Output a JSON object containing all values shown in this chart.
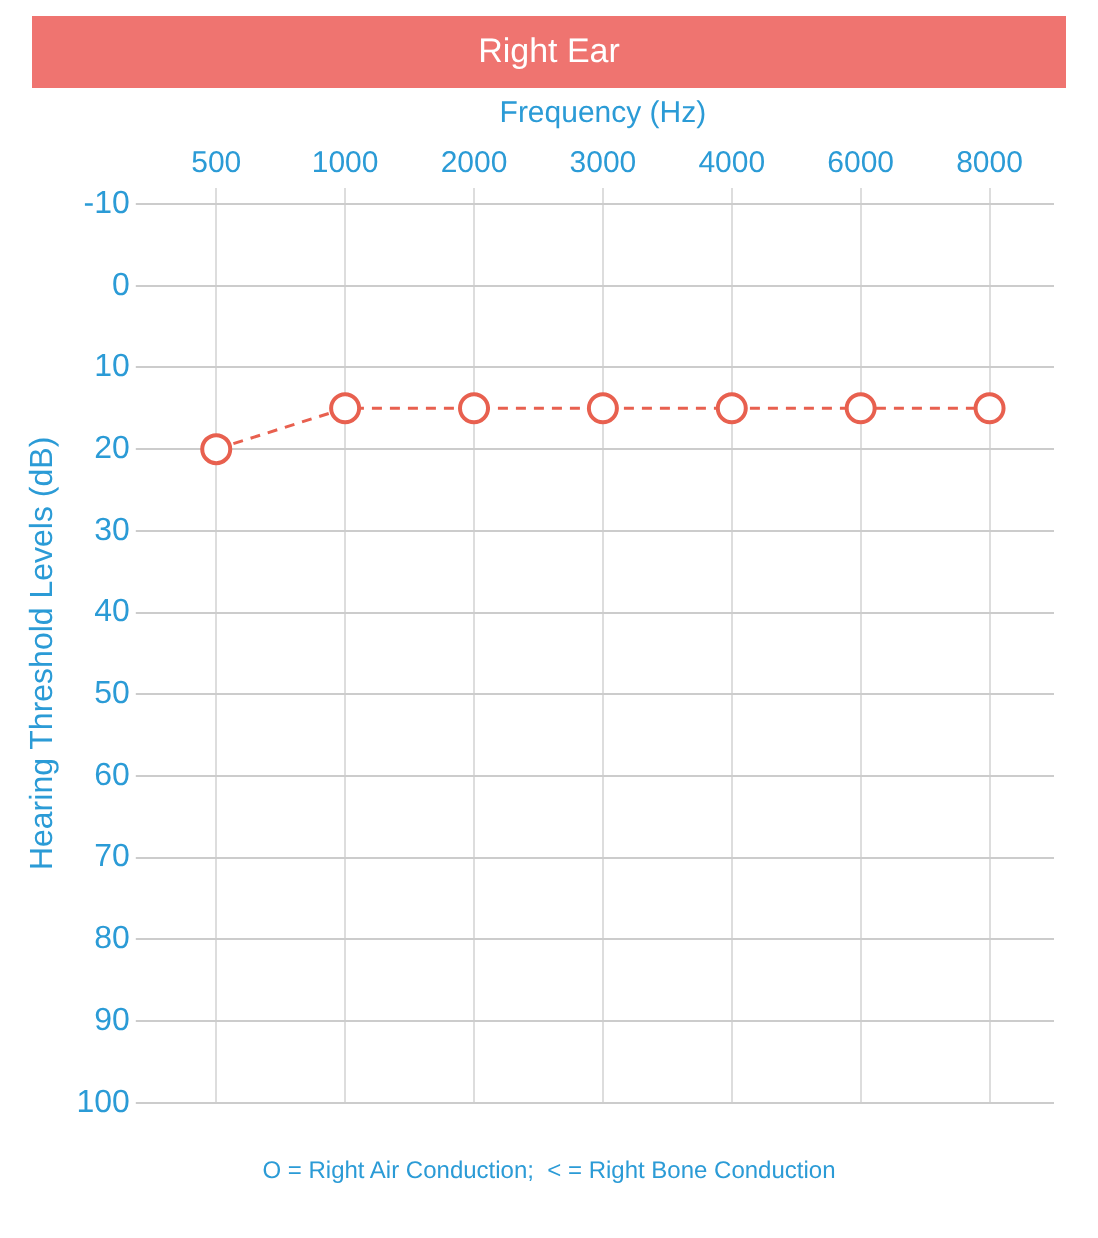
{
  "chart_data": {
    "type": "line",
    "title": "Right Ear",
    "xlabel": "Frequency (Hz)",
    "ylabel": "Hearing Threshold Levels (dB)",
    "categories": [
      "500",
      "1000",
      "2000",
      "3000",
      "4000",
      "6000",
      "8000"
    ],
    "series": [
      {
        "color": "#e8604f",
        "values": [
          20,
          15,
          15,
          15,
          15,
          15,
          15
        ]
      }
    ],
    "ylim": [
      100,
      -10
    ],
    "yticks": [
      -10,
      0,
      10,
      20,
      30,
      40,
      50,
      60,
      70,
      80,
      90,
      100
    ],
    "grid": true,
    "legend": false,
    "marker": "circle",
    "line_style": "dashed",
    "annotations": [
      "O = Right Air Conduction;  < = Right Bone Conduction"
    ]
  }
}
